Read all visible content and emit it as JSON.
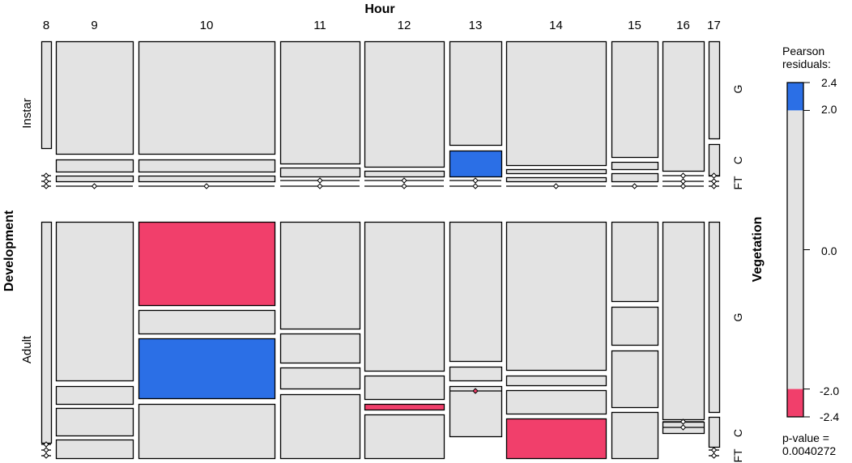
{
  "chart_data": {
    "type": "mosaic",
    "title": "Hour",
    "row_variable": "Development",
    "column_variable": "Hour",
    "cell_variable": "Vegetation",
    "hours": [
      "8",
      "9",
      "10",
      "11",
      "12",
      "13",
      "14",
      "15",
      "16",
      "17"
    ],
    "development_levels": [
      "Instar",
      "Adult"
    ],
    "vegetation_labels": [
      "G",
      "C",
      "FT"
    ],
    "legend": {
      "title_line1": "Pearson",
      "title_line2": "residuals:",
      "ticks": [
        "2.4",
        "2.0",
        "0.0",
        "-2.0",
        "-2.4"
      ],
      "pvalue_line1": "p-value =",
      "pvalue_line2": "0.0040272"
    },
    "residual_range": [
      -2.4,
      2.4
    ],
    "shading_thresholds": [
      -2.0,
      2.0
    ],
    "colors": {
      "positive": "#2b6fe6",
      "negative": "#f13f6b",
      "neutral": "#e3e3e3",
      "border": "#000000"
    },
    "cells": [
      {
        "development": "Instar",
        "hour": "8",
        "segments": [
          {
            "v": "G",
            "r": 0
          },
          {
            "v": "C",
            "r": 0,
            "empty": true
          },
          {
            "v": "FT",
            "r": 0,
            "empty": true
          }
        ]
      },
      {
        "development": "Instar",
        "hour": "9",
        "segments": [
          {
            "v": "G",
            "r": 0
          },
          {
            "v": "C",
            "r": 0
          },
          {
            "v": "C2",
            "r": 0
          },
          {
            "v": "FT",
            "r": 0,
            "empty": true
          }
        ]
      },
      {
        "development": "Instar",
        "hour": "10",
        "segments": [
          {
            "v": "G",
            "r": 0
          },
          {
            "v": "C",
            "r": 0
          },
          {
            "v": "C2",
            "r": 0
          },
          {
            "v": "FT",
            "r": 0,
            "empty": true
          }
        ]
      },
      {
        "development": "Instar",
        "hour": "11",
        "segments": [
          {
            "v": "G",
            "r": 0
          },
          {
            "v": "C",
            "r": 0
          },
          {
            "v": "FT",
            "r": 0,
            "empty": true
          }
        ]
      },
      {
        "development": "Instar",
        "hour": "12",
        "segments": [
          {
            "v": "G",
            "r": 0
          },
          {
            "v": "C",
            "r": 0
          },
          {
            "v": "FT",
            "r": 0,
            "empty": true
          }
        ]
      },
      {
        "development": "Instar",
        "hour": "13",
        "segments": [
          {
            "v": "G",
            "r": 0
          },
          {
            "v": "C",
            "r": 2.4
          },
          {
            "v": "FT",
            "r": 0,
            "empty": true
          }
        ]
      },
      {
        "development": "Instar",
        "hour": "14",
        "segments": [
          {
            "v": "G",
            "r": 0
          },
          {
            "v": "C",
            "r": 0
          },
          {
            "v": "C2",
            "r": 0
          },
          {
            "v": "FT",
            "r": 0,
            "empty": true
          }
        ]
      },
      {
        "development": "Instar",
        "hour": "15",
        "segments": [
          {
            "v": "G",
            "r": 0
          },
          {
            "v": "C",
            "r": 0
          },
          {
            "v": "C2",
            "r": 0
          },
          {
            "v": "FT",
            "r": 0,
            "empty": true
          }
        ]
      },
      {
        "development": "Instar",
        "hour": "16",
        "segments": [
          {
            "v": "G",
            "r": 0
          },
          {
            "v": "C",
            "r": 0,
            "empty": true
          },
          {
            "v": "FT",
            "r": 0,
            "empty": true
          }
        ]
      },
      {
        "development": "Instar",
        "hour": "17",
        "segments": [
          {
            "v": "G",
            "r": 0
          },
          {
            "v": "C",
            "r": 0
          },
          {
            "v": "FT",
            "r": 0,
            "empty": true
          }
        ]
      },
      {
        "development": "Adult",
        "hour": "8",
        "segments": [
          {
            "v": "G",
            "r": 0
          },
          {
            "v": "C",
            "r": 0,
            "empty": true
          },
          {
            "v": "FT",
            "r": 0,
            "empty": true
          }
        ]
      },
      {
        "development": "Adult",
        "hour": "9",
        "segments": [
          {
            "v": "G",
            "r": 0
          },
          {
            "v": "C",
            "r": 0
          },
          {
            "v": "C2",
            "r": 0
          },
          {
            "v": "FT",
            "r": 0
          }
        ]
      },
      {
        "development": "Adult",
        "hour": "10",
        "segments": [
          {
            "v": "G",
            "r": -2.4
          },
          {
            "v": "G2",
            "r": 0
          },
          {
            "v": "C",
            "r": 2.4
          },
          {
            "v": "FT",
            "r": 0
          }
        ]
      },
      {
        "development": "Adult",
        "hour": "11",
        "segments": [
          {
            "v": "G",
            "r": 0
          },
          {
            "v": "G2",
            "r": 0
          },
          {
            "v": "C",
            "r": 0
          },
          {
            "v": "FT",
            "r": 0
          }
        ]
      },
      {
        "development": "Adult",
        "hour": "12",
        "segments": [
          {
            "v": "G",
            "r": 0
          },
          {
            "v": "C",
            "r": 0
          },
          {
            "v": "C2",
            "r": -2.4
          },
          {
            "v": "FT",
            "r": 0
          }
        ]
      },
      {
        "development": "Adult",
        "hour": "13",
        "segments": [
          {
            "v": "G",
            "r": 0
          },
          {
            "v": "C",
            "r": 0
          },
          {
            "v": "C2",
            "r": 0,
            "empty": true
          },
          {
            "v": "FT",
            "r": 0
          }
        ]
      },
      {
        "development": "Adult",
        "hour": "14",
        "segments": [
          {
            "v": "G",
            "r": 0
          },
          {
            "v": "G2",
            "r": 0
          },
          {
            "v": "C",
            "r": 0
          },
          {
            "v": "FT",
            "r": -2.4
          }
        ]
      },
      {
        "development": "Adult",
        "hour": "15",
        "segments": [
          {
            "v": "G",
            "r": 0
          },
          {
            "v": "G2",
            "r": 0
          },
          {
            "v": "C",
            "r": 0
          },
          {
            "v": "FT",
            "r": 0
          }
        ]
      },
      {
        "development": "Adult",
        "hour": "16",
        "segments": [
          {
            "v": "G",
            "r": 0
          },
          {
            "v": "C",
            "r": 0,
            "empty": true
          },
          {
            "v": "FT",
            "r": 0
          }
        ]
      },
      {
        "development": "Adult",
        "hour": "17",
        "segments": [
          {
            "v": "G",
            "r": 0
          },
          {
            "v": "C",
            "r": 0
          },
          {
            "v": "FT",
            "r": 0,
            "empty": true
          }
        ]
      }
    ]
  }
}
